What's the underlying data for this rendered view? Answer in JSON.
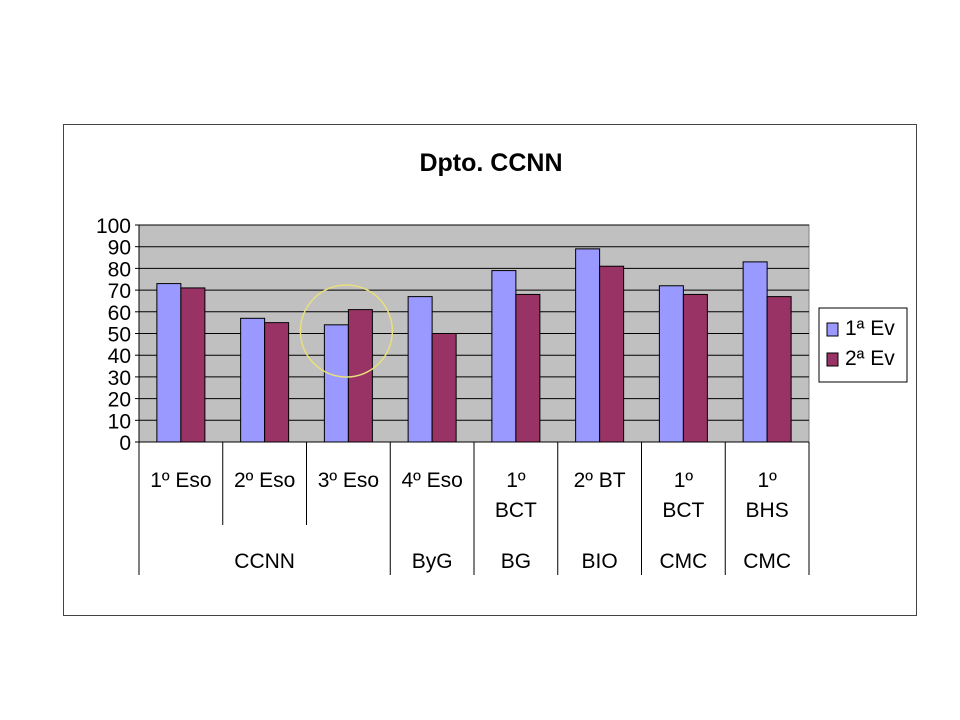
{
  "chart_data": {
    "type": "bar",
    "title": "Dpto. CCNN",
    "xlabel": "",
    "ylabel": "",
    "ylim": [
      0,
      100
    ],
    "yticks": [
      0,
      10,
      20,
      30,
      40,
      50,
      60,
      70,
      80,
      90,
      100
    ],
    "grid": true,
    "legend_position": "right",
    "categories": [
      {
        "label": [
          "1º Eso"
        ]
      },
      {
        "label": [
          "2º Eso"
        ]
      },
      {
        "label": [
          "3º Eso"
        ]
      },
      {
        "label": [
          "4º Eso"
        ]
      },
      {
        "label": [
          "1º",
          "BCT"
        ]
      },
      {
        "label": [
          "2º BT"
        ]
      },
      {
        "label": [
          "1º",
          "BCT"
        ]
      },
      {
        "label": [
          "1º",
          "BHS"
        ]
      }
    ],
    "groups": [
      {
        "label": "CCNN",
        "from": 0,
        "to": 2
      },
      {
        "label": "ByG",
        "from": 3,
        "to": 3
      },
      {
        "label": "BG",
        "from": 4,
        "to": 4
      },
      {
        "label": "BIO",
        "from": 5,
        "to": 5
      },
      {
        "label": "CMC",
        "from": 6,
        "to": 6
      },
      {
        "label": "CMC",
        "from": 7,
        "to": 7
      }
    ],
    "series": [
      {
        "name": "1ª Ev",
        "color": "#9999ff",
        "values": [
          73,
          57,
          54,
          67,
          79,
          89,
          72,
          83
        ]
      },
      {
        "name": "2ª Ev",
        "color": "#993366",
        "values": [
          71,
          55,
          61,
          50,
          68,
          81,
          68,
          67
        ]
      }
    ],
    "highlight_category": 2,
    "colors": {
      "plot_background": "#c0c0c0",
      "highlight_circle": "#e8e07a"
    }
  }
}
